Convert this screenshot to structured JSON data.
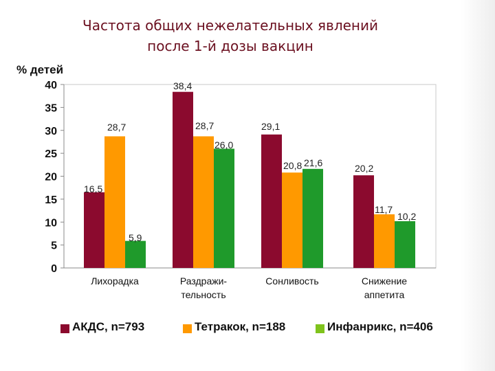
{
  "title": {
    "line1": "Частота общих нежелательных явлений",
    "line2": "после 1-й дозы вакцин"
  },
  "chart_data": {
    "type": "bar",
    "ylabel": "% детей",
    "ylim": [
      0,
      40
    ],
    "yticks": [
      0,
      5,
      10,
      15,
      20,
      25,
      30,
      35,
      40
    ],
    "categories": [
      [
        "Лихорадка"
      ],
      [
        "Раздражи-",
        "тельность"
      ],
      [
        "Сонливость"
      ],
      [
        "Снижение",
        "аппетита"
      ]
    ],
    "series": [
      {
        "name": "АКДС, n=793",
        "color": "#8b0a2e",
        "values": [
          16.5,
          38.4,
          29.1,
          20.2
        ],
        "labels": [
          "16,5",
          "38,4",
          "29,1",
          "20,2"
        ]
      },
      {
        "name": "Тетракок, n=188",
        "color": "#ff9900",
        "values": [
          28.7,
          28.7,
          20.8,
          11.7
        ],
        "labels": [
          "28,7",
          "28,7",
          "20,8",
          "11,7"
        ]
      },
      {
        "name": "Инфанрикс, n=406",
        "color": "#1f9a2b",
        "values": [
          5.9,
          26.0,
          21.6,
          10.2
        ],
        "labels": [
          "5,9",
          "26,0",
          "21,6",
          "10,2"
        ]
      }
    ],
    "grid": false,
    "legend_position": "bottom"
  },
  "legend": [
    {
      "label": "АКДС, n=793",
      "color": "#8b0a2e"
    },
    {
      "label": "Тетракок, n=188",
      "color": "#ff9900"
    },
    {
      "label": "Инфанрикс, n=406",
      "color": "#7fc31c"
    }
  ]
}
